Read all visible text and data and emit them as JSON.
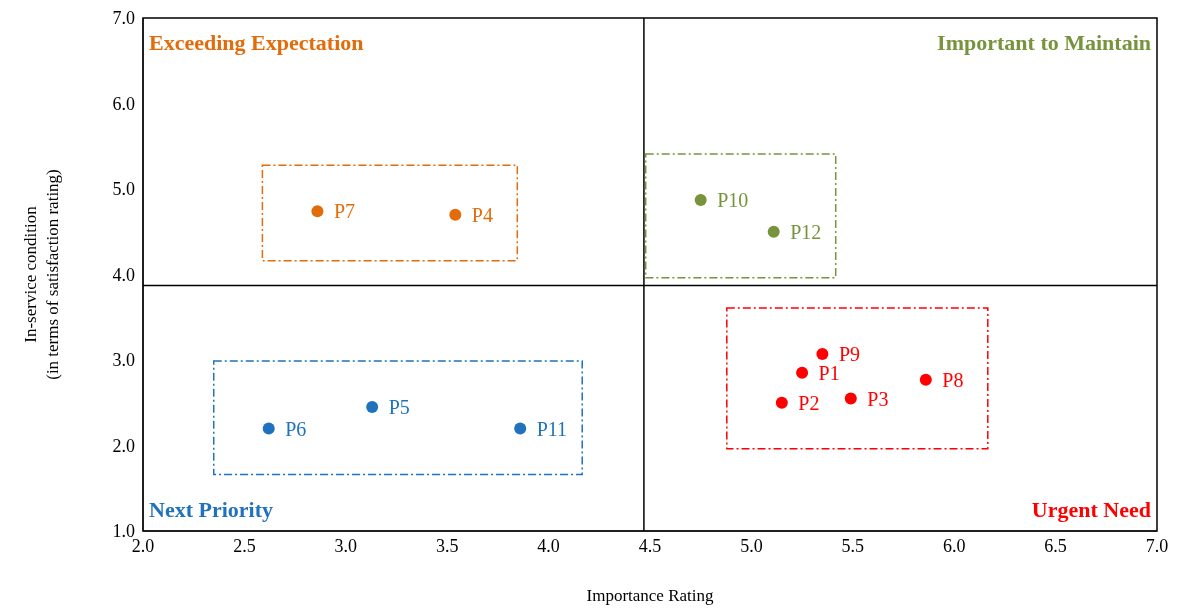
{
  "chart_data": {
    "type": "scatter",
    "xlabel": "Importance Rating",
    "ylabel": "In-service condition\n(in terms of satisfaction rating)",
    "xlim": [
      2,
      7
    ],
    "xticks": [
      {
        "value": 2,
        "label": "2.0"
      },
      {
        "value": 2.5,
        "label": "2.5"
      },
      {
        "value": 3,
        "label": "3.0"
      },
      {
        "value": 3.5,
        "label": "3.5"
      },
      {
        "value": 4,
        "label": "4.0"
      },
      {
        "value": 4.5,
        "label": "4.5"
      },
      {
        "value": 5,
        "label": "5.0"
      },
      {
        "value": 5.5,
        "label": "5.5"
      },
      {
        "value": 6,
        "label": "6.0"
      },
      {
        "value": 6.5,
        "label": "6.5"
      },
      {
        "value": 7,
        "label": "7.0"
      }
    ],
    "ylim": [
      1,
      7
    ],
    "yticks": [
      {
        "value": 1,
        "label": "1.0"
      },
      {
        "value": 2,
        "label": "2.0"
      },
      {
        "value": 3,
        "label": "3.0"
      },
      {
        "value": 4,
        "label": "4.0"
      },
      {
        "value": 5,
        "label": "5.0"
      },
      {
        "value": 6,
        "label": "6.0"
      },
      {
        "value": 7,
        "label": "7.0"
      }
    ],
    "marker": "circle",
    "series": [
      {
        "color": "#e36c0a",
        "x": [
          2.86,
          3.54
        ],
        "values": [
          4.74,
          4.7
        ],
        "value_labels": [
          "P7",
          "P4"
        ]
      },
      {
        "color": "#77933c",
        "x": [
          4.75,
          5.11
        ],
        "values": [
          4.87,
          4.5
        ],
        "value_labels": [
          "P10",
          "P12"
        ]
      },
      {
        "color": "#1f72bb",
        "x": [
          2.62,
          3.13,
          3.86
        ],
        "values": [
          2.2,
          2.45,
          2.2
        ],
        "value_labels": [
          "P6",
          "P5",
          "P11"
        ]
      },
      {
        "color": "#ff0000",
        "x": [
          5.25,
          5.15,
          5.49,
          5.35,
          5.86
        ],
        "values": [
          2.85,
          2.5,
          2.55,
          3.07,
          2.77
        ],
        "value_labels": [
          "P1",
          "P2",
          "P3",
          "P9",
          "P8"
        ]
      }
    ],
    "ref_lines": [
      {
        "axis": "x",
        "value": 4.47,
        "color": "#000000"
      },
      {
        "axis": "y",
        "value": 3.87,
        "color": "#000000"
      }
    ],
    "annotations": [
      "Exceeding Expectation",
      "Important to Maintain",
      "Next Priority",
      "Urgent Need"
    ]
  }
}
